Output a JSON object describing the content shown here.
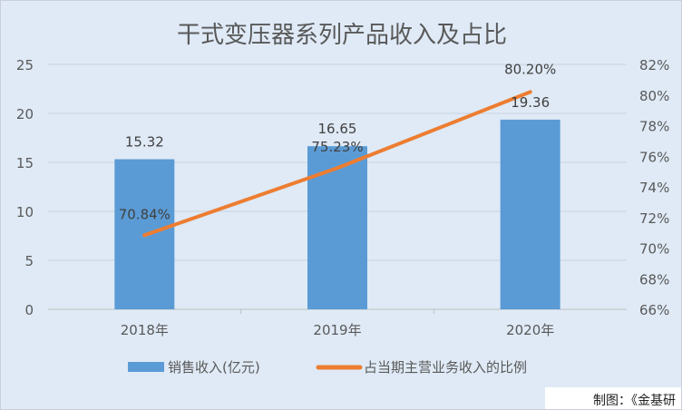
{
  "chart_data": {
    "type": "bar+line",
    "title": "干式变压器系列产品收入及占比",
    "categories": [
      "2018年",
      "2019年",
      "2020年"
    ],
    "series": [
      {
        "name": "销售收入(亿元)",
        "type": "bar",
        "axis": "left",
        "values": [
          15.32,
          16.65,
          19.36
        ],
        "labels": [
          "15.32",
          "16.65",
          "19.36"
        ],
        "color": "#5b9bd5"
      },
      {
        "name": "占当期主营业务收入的比例",
        "type": "line",
        "axis": "right",
        "values": [
          70.84,
          75.23,
          80.2
        ],
        "labels": [
          "70.84%",
          "75.23%",
          "80.20%"
        ],
        "color": "#ed7d31"
      }
    ],
    "left_axis": {
      "ylim": [
        0,
        25
      ],
      "ticks": [
        "0",
        "5",
        "10",
        "15",
        "20",
        "25"
      ]
    },
    "right_axis": {
      "ylim": [
        66,
        82
      ],
      "ticks": [
        "66%",
        "68%",
        "70%",
        "72%",
        "74%",
        "76%",
        "78%",
        "80%",
        "82%"
      ]
    },
    "grid": true,
    "legend": "bottom",
    "source": "制图：《金基研"
  }
}
